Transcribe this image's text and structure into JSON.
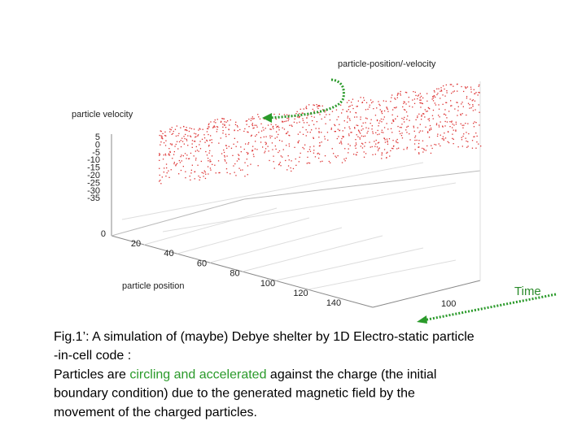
{
  "plot": {
    "title": "particle-position/-velocity",
    "y_label": "particle velocity",
    "x_label": "particle position",
    "y_ticks": [
      "5",
      "0",
      "-5",
      "-10",
      "-15",
      "-20",
      "-25",
      "-30",
      "-35"
    ],
    "z_tick": "0",
    "x_ticks": [
      "20",
      "40",
      "60",
      "80",
      "100",
      "120",
      "140"
    ],
    "time_tick": "100",
    "time_label": "Time"
  },
  "caption": {
    "lines": [
      [
        {
          "text": "Fig.1’: A simulation of (maybe) Debye shelter by 1D Electro-static particle"
        }
      ],
      [
        {
          "text": "-in-cell code :"
        }
      ],
      [
        {
          "text": "Particles are "
        },
        {
          "text": "circling and accelerated",
          "highlight": true
        },
        {
          "text": "  against the charge (the initial"
        }
      ],
      [
        {
          "text": "boundary condition) due to the generated magnetic field by the"
        }
      ],
      [
        {
          "text": "movement of the charged particles."
        }
      ]
    ]
  }
}
